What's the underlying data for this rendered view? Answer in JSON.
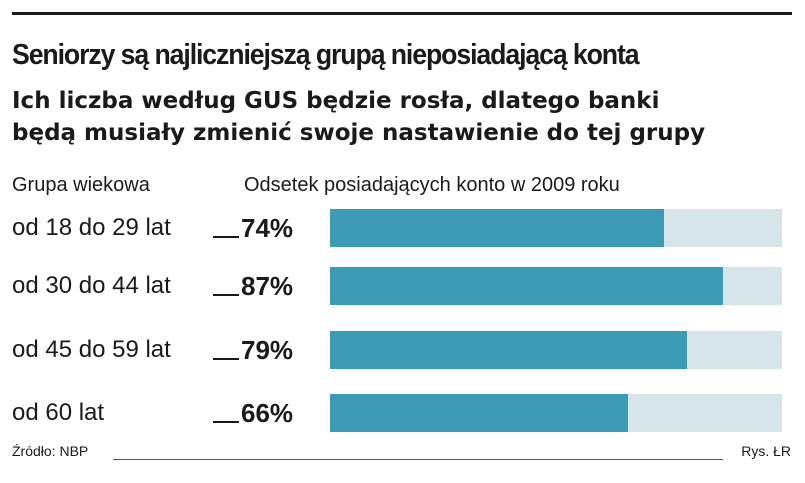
{
  "chart_data": {
    "type": "bar",
    "orientation": "horizontal",
    "title": "Seniorzy są najliczniejszą grupą nieposiadającą konta",
    "subtitle": "Ich liczba według GUS będzie rosła, dlatego banki\nbędą musiały zmienić swoje nastawienie do tej grupy",
    "category_header": "Grupa wiekowa",
    "value_header": "Odsetek posiadających konto w 2009 roku",
    "categories": [
      "od 18 do 29 lat",
      "od 30 do 44 lat",
      "od 45 do 59 lat",
      "od 60 lat"
    ],
    "values": [
      74,
      87,
      79,
      66
    ],
    "value_labels": [
      "74%",
      "87%",
      "79%",
      "66%"
    ],
    "xlim": [
      0,
      100
    ],
    "grid": false,
    "bar_color": "#3d9ab5",
    "track_color": "#d6e5e9"
  },
  "footer": {
    "source": "Źródło: NBP",
    "credit": "Rys. ŁR"
  }
}
